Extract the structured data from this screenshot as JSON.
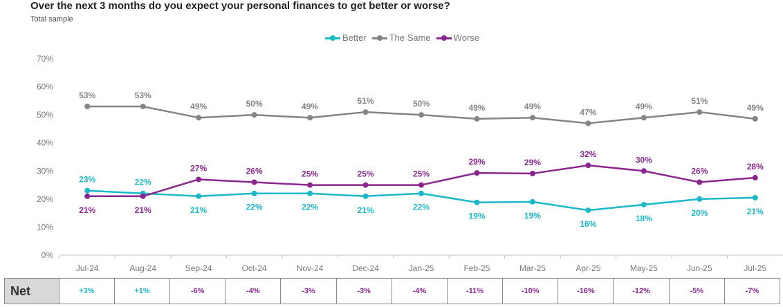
{
  "title": "Over the next 3 months do you expect your personal finances to get better or worse?",
  "subtitle": "Total sample",
  "colors": {
    "better": "#1ab8c8",
    "same": "#848484",
    "worse": "#8b2690",
    "grid": "#d9d9d9",
    "axis_text": "#777777"
  },
  "chart_data": {
    "type": "line",
    "title": "Over the next 3 months do you expect your personal finances to get better or worse?",
    "subtitle": "Total sample",
    "categories": [
      "Jul-24",
      "Aug-24",
      "Sep-24",
      "Oct-24",
      "Nov-24",
      "Dec-24",
      "Jan-25",
      "Feb-25",
      "Mar-25",
      "Apr-25",
      "May-25",
      "Jun-25",
      "Jul-25"
    ],
    "yticks": [
      "0%",
      "10%",
      "20%",
      "30%",
      "40%",
      "50%",
      "60%",
      "70%"
    ],
    "ylim": [
      0,
      70
    ],
    "grid": true,
    "legend_position": "top-center",
    "series": [
      {
        "name": "Better",
        "color_key": "better",
        "values": [
          23,
          22,
          21,
          22,
          22,
          21,
          22,
          19,
          19,
          16,
          18,
          20,
          21
        ],
        "plot_values": [
          23,
          22,
          21,
          22,
          22,
          21,
          22,
          18.8,
          19,
          16,
          18,
          20,
          20.5
        ],
        "labels": [
          "23%",
          "22%",
          "21%",
          "22%",
          "22%",
          "21%",
          "22%",
          "19%",
          "19%",
          "16%",
          "18%",
          "20%",
          "21%"
        ],
        "label_pos": [
          "above",
          "above",
          "below",
          "below",
          "below",
          "below",
          "below",
          "below",
          "below",
          "below",
          "below",
          "below",
          "below"
        ]
      },
      {
        "name": "The Same",
        "color_key": "same",
        "values": [
          53,
          53,
          49,
          50,
          49,
          51,
          50,
          49,
          49,
          47,
          49,
          51,
          49
        ],
        "plot_values": [
          53,
          53,
          49,
          50,
          49,
          51,
          50,
          48.6,
          49,
          47,
          49,
          51,
          48.6
        ],
        "labels": [
          "53%",
          "53%",
          "49%",
          "50%",
          "49%",
          "51%",
          "50%",
          "49%",
          "49%",
          "47%",
          "49%",
          "51%",
          "49%"
        ],
        "label_pos": [
          "above",
          "above",
          "above",
          "above",
          "above",
          "above",
          "above",
          "above",
          "above",
          "above",
          "above",
          "above",
          "above"
        ]
      },
      {
        "name": "Worse",
        "color_key": "worse",
        "values": [
          21,
          21,
          27,
          26,
          25,
          25,
          25,
          29,
          29,
          32,
          30,
          26,
          28
        ],
        "plot_values": [
          21,
          21,
          27,
          26,
          25,
          25,
          25,
          29.3,
          29.1,
          32,
          30,
          26,
          27.6
        ],
        "labels": [
          "21%",
          "21%",
          "27%",
          "26%",
          "25%",
          "25%",
          "25%",
          "29%",
          "29%",
          "32%",
          "30%",
          "26%",
          "28%"
        ],
        "label_pos": [
          "below",
          "below",
          "above",
          "above",
          "above",
          "above",
          "above",
          "above",
          "above",
          "above",
          "above",
          "above",
          "above"
        ]
      }
    ]
  },
  "net": {
    "label": "Net",
    "values": [
      "+3%",
      "+1%",
      "-6%",
      "-4%",
      "-3%",
      "-3%",
      "-4%",
      "-11%",
      "-10%",
      "-16%",
      "-12%",
      "-5%",
      "-7%"
    ],
    "value_colors": [
      "better",
      "better",
      "worse",
      "worse",
      "worse",
      "worse",
      "worse",
      "worse",
      "worse",
      "worse",
      "worse",
      "worse",
      "worse"
    ]
  }
}
